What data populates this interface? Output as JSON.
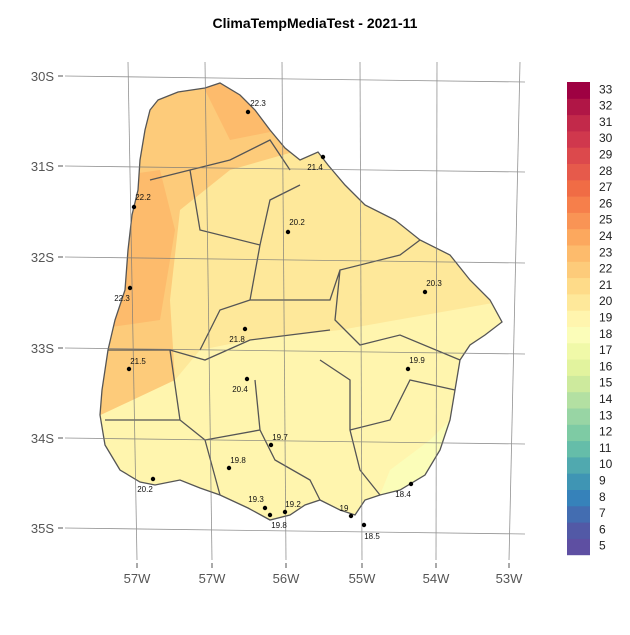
{
  "title": "ClimaTempMediaTest - 2021-11",
  "lat_labels": [
    "30S",
    "31S",
    "32S",
    "33S",
    "34S",
    "35S"
  ],
  "lon_labels": [
    "57W",
    "57W",
    "56W",
    "55W",
    "54W",
    "53W"
  ],
  "stations": [
    22.3,
    21.4,
    22.2,
    20.2,
    20.3,
    22.3,
    21.8,
    21.5,
    19.9,
    20.4,
    19.7,
    19.8,
    20.2,
    18.4,
    19.3,
    19.2,
    19,
    19.8,
    18.5
  ],
  "legend": {
    "levels": [
      5,
      6,
      7,
      8,
      9,
      10,
      11,
      12,
      13,
      14,
      15,
      16,
      17,
      18,
      19,
      20,
      21,
      22,
      23,
      24,
      25,
      26,
      27,
      28,
      29,
      30,
      31,
      32,
      33
    ],
    "colors": [
      "#5e4fa2",
      "#5259a6",
      "#436db1",
      "#3682ba",
      "#3f95b4",
      "#50a9af",
      "#65bda9",
      "#7ecba4",
      "#98d5a4",
      "#b3e0a2",
      "#cdea9d",
      "#e2f39e",
      "#f0f9a8",
      "#fbfdb9",
      "#fff5ae",
      "#fee89a",
      "#fedb89",
      "#fdcb7a",
      "#fdbb6c",
      "#fca85e",
      "#f99455",
      "#f67f4b",
      "#f06c45",
      "#e65a4b",
      "#dc494c",
      "#d0384d",
      "#c2294a",
      "#b01646",
      "#9e0142"
    ]
  }
}
